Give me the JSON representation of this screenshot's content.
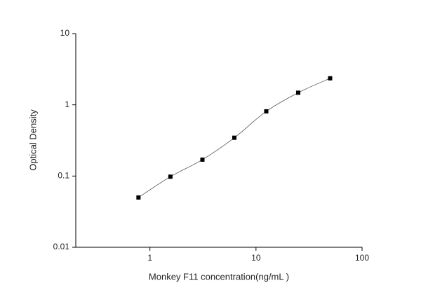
{
  "chart_data": {
    "type": "scatter",
    "x_label": "Monkey F11 concentration(ng/mL )",
    "y_label": "Optical Density",
    "x_log": true,
    "y_log": true,
    "xlim": [
      0.2,
      100
    ],
    "ylim": [
      0.01,
      10
    ],
    "xticks": [
      1,
      10,
      100
    ],
    "yticks": [
      0.01,
      0.1,
      1,
      10
    ],
    "series": [
      {
        "color": "#000000",
        "fit_line": true,
        "x": [
          0.78,
          1.56,
          3.125,
          6.25,
          12.5,
          25,
          50
        ],
        "values": [
          0.05,
          0.098,
          0.17,
          0.345,
          0.81,
          1.48,
          2.36
        ]
      }
    ]
  }
}
